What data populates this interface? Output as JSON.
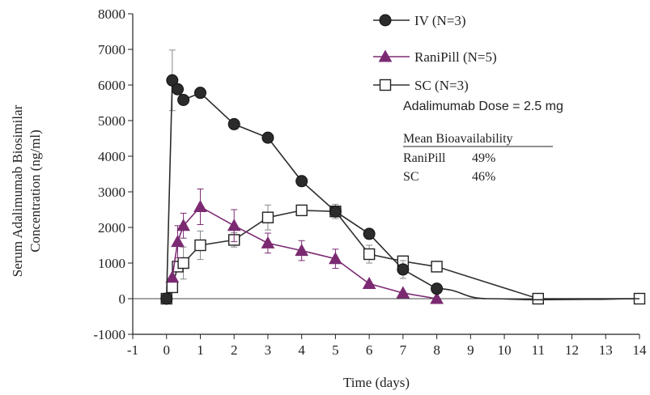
{
  "chart_data": {
    "type": "line",
    "xlabel": "Time (days)",
    "ylabel_line1": "Serum Adalimumab Biosimilar",
    "ylabel_line2": "Concentration (ng/ml)",
    "xlim": [
      -1,
      14
    ],
    "ylim": [
      -1000,
      8000
    ],
    "x_ticks": [
      -1,
      0,
      1,
      2,
      3,
      4,
      5,
      6,
      7,
      8,
      9,
      10,
      11,
      12,
      13,
      14
    ],
    "y_ticks": [
      -1000,
      0,
      1000,
      2000,
      3000,
      4000,
      5000,
      6000,
      7000,
      8000
    ],
    "grid": false,
    "legend_position": "top-right",
    "series": [
      {
        "name": "IV (N=3)",
        "marker": "circle",
        "color": "#333333",
        "x": [
          0,
          0.17,
          0.33,
          0.5,
          1,
          2,
          3,
          4,
          5,
          6,
          7,
          8
        ],
        "y": [
          0,
          6130,
          5880,
          5580,
          5780,
          4900,
          4520,
          3300,
          2450,
          1820,
          820,
          280
        ],
        "err": [
          0,
          850,
          0,
          0,
          0,
          0,
          0,
          0,
          0,
          0,
          250,
          0
        ],
        "curve": {
          "x": [
            8,
            9.5,
            11,
            12.5,
            14
          ],
          "y": [
            280,
            0,
            -30,
            -20,
            0
          ]
        }
      },
      {
        "name": "RaniPill (N=5)",
        "marker": "triangle",
        "color": "#7b2a72",
        "x": [
          0.17,
          0.33,
          0.5,
          1,
          2,
          3,
          4,
          5,
          6,
          7,
          8
        ],
        "y": [
          600,
          1600,
          2050,
          2580,
          2050,
          1560,
          1350,
          1120,
          420,
          160,
          0
        ],
        "err": [
          0,
          450,
          350,
          500,
          450,
          280,
          280,
          270,
          0,
          0,
          0
        ]
      },
      {
        "name": "SC (N=3)",
        "marker": "square",
        "color": "#333333",
        "x": [
          0,
          0.17,
          0.33,
          0.5,
          1,
          2,
          3,
          4,
          5,
          6,
          7,
          8,
          11,
          14
        ],
        "y": [
          0,
          320,
          900,
          1000,
          1500,
          1650,
          2280,
          2480,
          2450,
          1250,
          1050,
          900,
          0,
          0
        ],
        "err": [
          0,
          0,
          0,
          450,
          400,
          200,
          350,
          0,
          200,
          250,
          0,
          150,
          0,
          0
        ]
      }
    ],
    "annotation_dose": "Adalimumab Dose = 2.5 mg",
    "bioavailability": {
      "title": "Mean Bioavailability",
      "rows": [
        {
          "label": "RaniPill",
          "value": "49%"
        },
        {
          "label": "SC",
          "value": "46%"
        }
      ]
    }
  }
}
